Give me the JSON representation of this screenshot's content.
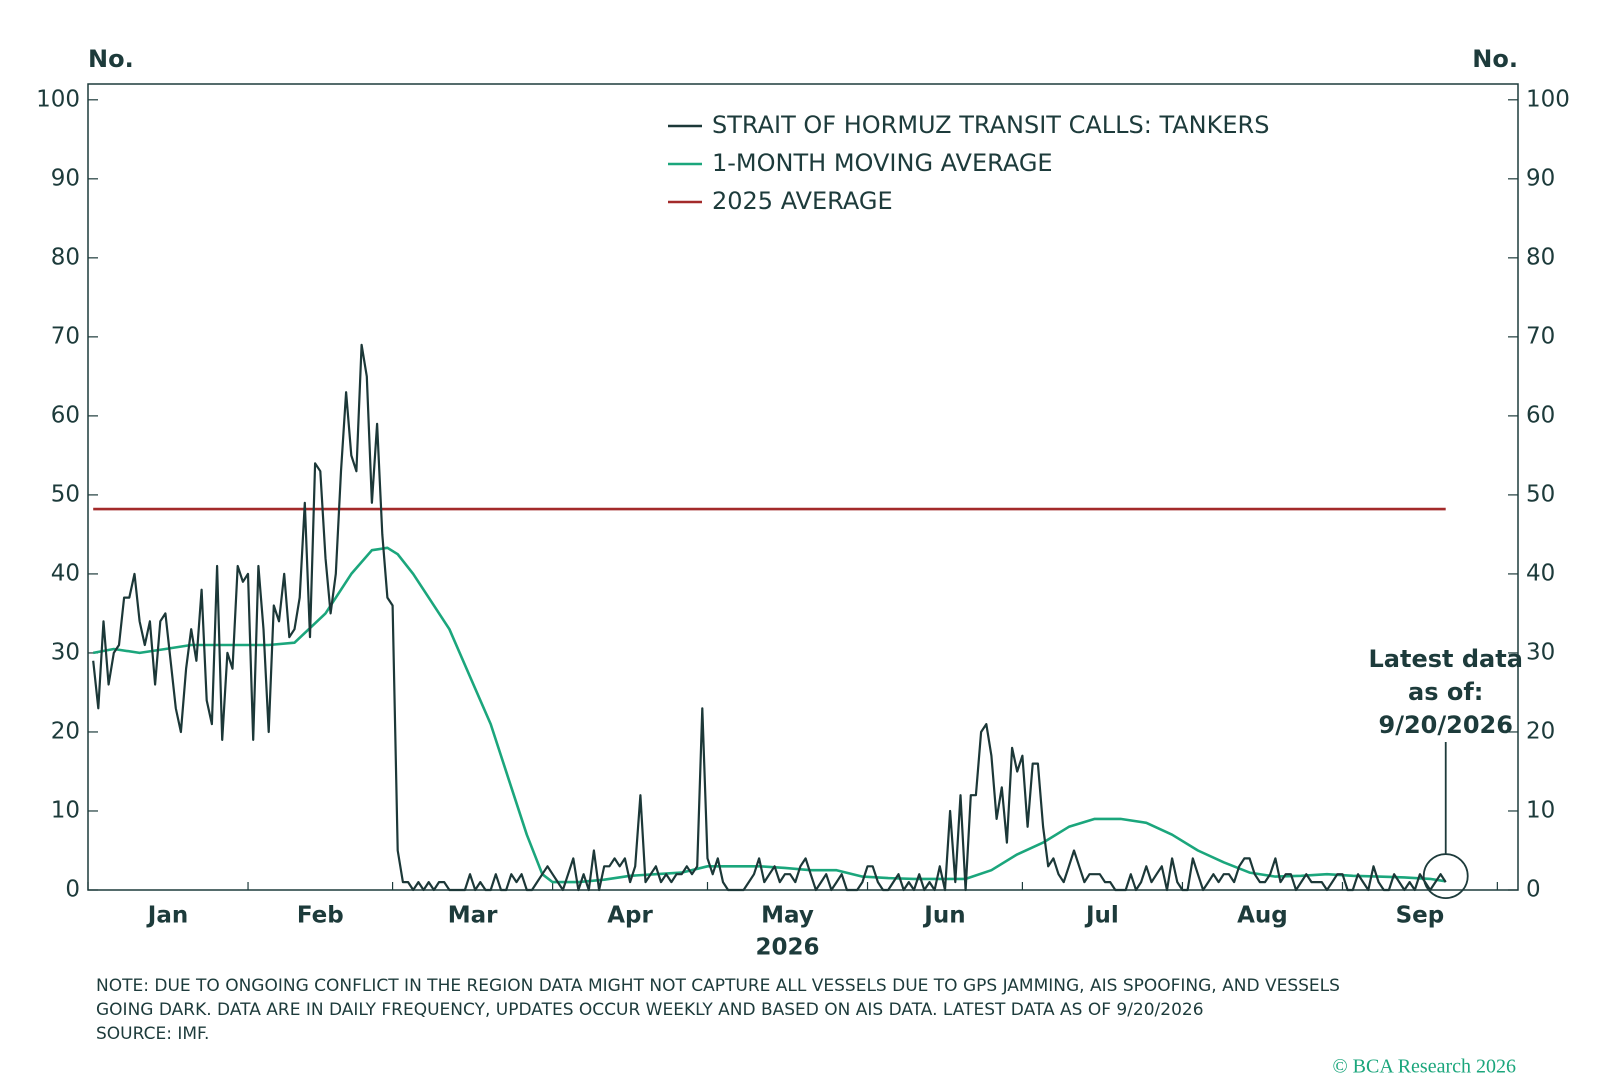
{
  "chart_data": {
    "type": "line",
    "y_label_left": "No.",
    "y_label_right": "No.",
    "x_axis_label": "2026",
    "x_labels": [
      "Jan",
      "Feb",
      "Mar",
      "Apr",
      "May",
      "Jun",
      "Jul",
      "Aug",
      "Sep"
    ],
    "xlim": [
      0,
      277
    ],
    "xticks": [
      0,
      31,
      59,
      90,
      120,
      151,
      181,
      212,
      243,
      273
    ],
    "ylim": [
      0,
      102
    ],
    "yticks": [
      0,
      10,
      20,
      30,
      40,
      50,
      60,
      70,
      80,
      90,
      100
    ],
    "y2lim": [
      0,
      102
    ],
    "y2ticks": [
      0,
      10,
      20,
      30,
      40,
      50,
      60,
      70,
      80,
      90,
      100
    ],
    "x": [
      1,
      2,
      3,
      4,
      5,
      6,
      7,
      8,
      9,
      10,
      11,
      12,
      13,
      14,
      15,
      16,
      17,
      18,
      19,
      20,
      21,
      22,
      23,
      24,
      25,
      26,
      27,
      28,
      29,
      30,
      31,
      32,
      33,
      34,
      35,
      36,
      37,
      38,
      39,
      40,
      41,
      42,
      43,
      44,
      45,
      46,
      47,
      48,
      49,
      50,
      51,
      52,
      53,
      54,
      55,
      56,
      57,
      58,
      59,
      60,
      61,
      62,
      63,
      64,
      65,
      66,
      67,
      68,
      69,
      70,
      71,
      72,
      73,
      74,
      75,
      76,
      77,
      78,
      79,
      80,
      81,
      82,
      83,
      84,
      85,
      86,
      87,
      88,
      89,
      90,
      91,
      92,
      93,
      94,
      95,
      96,
      97,
      98,
      99,
      100,
      101,
      102,
      103,
      104,
      105,
      106,
      107,
      108,
      109,
      110,
      111,
      112,
      113,
      114,
      115,
      116,
      117,
      118,
      119,
      120,
      121,
      122,
      123,
      124,
      125,
      126,
      127,
      128,
      129,
      130,
      131,
      132,
      133,
      134,
      135,
      136,
      137,
      138,
      139,
      140,
      141,
      142,
      143,
      144,
      145,
      146,
      147,
      148,
      149,
      150,
      151,
      152,
      153,
      154,
      155,
      156,
      157,
      158,
      159,
      160,
      161,
      162,
      163,
      164,
      165,
      166,
      167,
      168,
      169,
      170,
      171,
      172,
      173,
      174,
      175,
      176,
      177,
      178,
      179,
      180,
      181,
      182,
      183,
      184,
      185,
      186,
      187,
      188,
      189,
      190,
      191,
      192,
      193,
      194,
      195,
      196,
      197,
      198,
      199,
      200,
      201,
      202,
      203,
      204,
      205,
      206,
      207,
      208,
      209,
      210,
      211,
      212,
      213,
      214,
      215,
      216,
      217,
      218,
      219,
      220,
      221,
      222,
      223,
      224,
      225,
      226,
      227,
      228,
      229,
      230,
      231,
      232,
      233,
      234,
      235,
      236,
      237,
      238,
      239,
      240,
      241,
      242,
      243,
      244,
      245,
      246,
      247,
      248,
      249,
      250,
      251,
      252,
      253,
      254,
      255,
      256,
      257,
      258,
      259,
      260,
      261,
      262,
      263
    ],
    "series": [
      {
        "name": "STRAIT OF HORMUZ TRANSIT CALLS: TANKERS",
        "color": "#1c3838",
        "values": [
          29,
          23,
          34,
          26,
          30,
          31,
          37,
          37,
          40,
          34,
          31,
          34,
          26,
          34,
          35,
          29,
          23,
          20,
          28,
          33,
          29,
          38,
          24,
          21,
          41,
          19,
          30,
          28,
          41,
          39,
          40,
          19,
          41,
          33,
          20,
          36,
          34,
          40,
          32,
          33,
          37,
          49,
          32,
          54,
          53,
          42,
          35,
          40,
          53,
          63,
          55,
          53,
          69,
          65,
          49,
          59,
          45,
          37,
          36,
          5,
          1,
          1,
          0,
          1,
          0,
          1,
          0,
          1,
          1,
          0,
          0,
          0,
          0,
          2,
          0,
          1,
          0,
          0,
          2,
          0,
          0,
          2,
          1,
          2,
          0,
          0,
          1,
          2,
          3,
          2,
          1,
          0,
          2,
          4,
          0,
          2,
          0,
          5,
          0,
          3,
          3,
          4,
          3,
          4,
          1,
          3,
          12,
          1,
          2,
          3,
          1,
          2,
          1,
          2,
          2,
          3,
          2,
          3,
          23,
          4,
          2,
          4,
          1,
          0,
          0,
          0,
          0,
          1,
          2,
          4,
          1,
          2,
          3,
          1,
          2,
          2,
          1,
          3,
          4,
          2,
          0,
          1,
          2,
          0,
          1,
          2,
          0,
          0,
          0,
          1,
          3,
          3,
          1,
          0,
          0,
          1,
          2,
          0,
          1,
          0,
          2,
          0,
          1,
          0,
          3,
          0,
          10,
          1,
          12,
          0,
          12,
          12,
          20,
          21,
          17,
          9,
          13,
          6,
          18,
          15,
          17,
          8,
          16,
          16,
          8,
          3,
          4,
          2,
          1,
          3,
          5,
          3,
          1,
          2,
          2,
          2,
          1,
          1,
          0,
          0,
          0,
          2,
          0,
          1,
          3,
          1,
          2,
          3,
          0,
          4,
          1,
          0,
          0,
          4,
          2,
          0,
          1,
          2,
          1,
          2,
          2,
          1,
          3,
          4,
          4,
          2,
          1,
          1,
          2,
          4,
          1,
          2,
          2,
          0,
          1,
          2,
          1,
          1,
          1,
          0,
          1,
          2,
          2,
          0,
          0,
          2,
          1,
          0,
          3,
          1,
          0,
          0,
          2,
          1,
          0,
          1,
          0,
          2,
          1,
          0,
          1,
          2,
          1
        ]
      },
      {
        "name": "1-MONTH MOVING AVERAGE",
        "color": "#1ba67c",
        "x": [
          1,
          5,
          10,
          15,
          20,
          25,
          30,
          35,
          40,
          46,
          51,
          55,
          58,
          60,
          63,
          66,
          70,
          74,
          78,
          82,
          85,
          88,
          90,
          92,
          95,
          100,
          105,
          110,
          115,
          120,
          125,
          130,
          135,
          140,
          145,
          150,
          155,
          160,
          165,
          170,
          175,
          180,
          185,
          190,
          195,
          200,
          205,
          210,
          215,
          220,
          225,
          230,
          235,
          240,
          245,
          250,
          255,
          260,
          263
        ],
        "values": [
          30,
          30.5,
          30,
          30.5,
          31,
          31,
          31,
          31,
          31.3,
          35,
          40,
          43,
          43.3,
          42.5,
          40,
          37,
          33,
          27,
          21,
          13,
          7,
          2,
          1,
          1,
          1,
          1.3,
          1.8,
          2,
          2.2,
          3,
          3,
          3,
          2.8,
          2.5,
          2.5,
          1.7,
          1.5,
          1.4,
          1.4,
          1.4,
          2.5,
          4.5,
          6,
          8,
          9,
          9,
          8.5,
          7,
          5,
          3.5,
          2.2,
          1.7,
          1.8,
          2,
          1.8,
          1.7,
          1.6,
          1.4,
          1.1
        ]
      },
      {
        "name": "2025 AVERAGE",
        "color": "#a32a2a",
        "x": [
          1,
          263
        ],
        "values": [
          48.2,
          48.2
        ]
      }
    ],
    "annotation": [
      "Latest data",
      "as of:",
      "9/20/2026"
    ],
    "note": [
      "NOTE: DUE TO ONGOING CONFLICT IN THE REGION DATA MIGHT NOT CAPTURE ALL VESSELS DUE TO GPS JAMMING, AIS SPOOFING, AND VESSELS",
      "GOING DARK. DATA ARE IN DAILY FREQUENCY, UPDATES OCCUR WEEKLY AND BASED ON AIS DATA. LATEST DATA AS OF 9/20/2026"
    ],
    "source": "SOURCE: IMF.",
    "copyright": "© BCA Research 2026"
  }
}
